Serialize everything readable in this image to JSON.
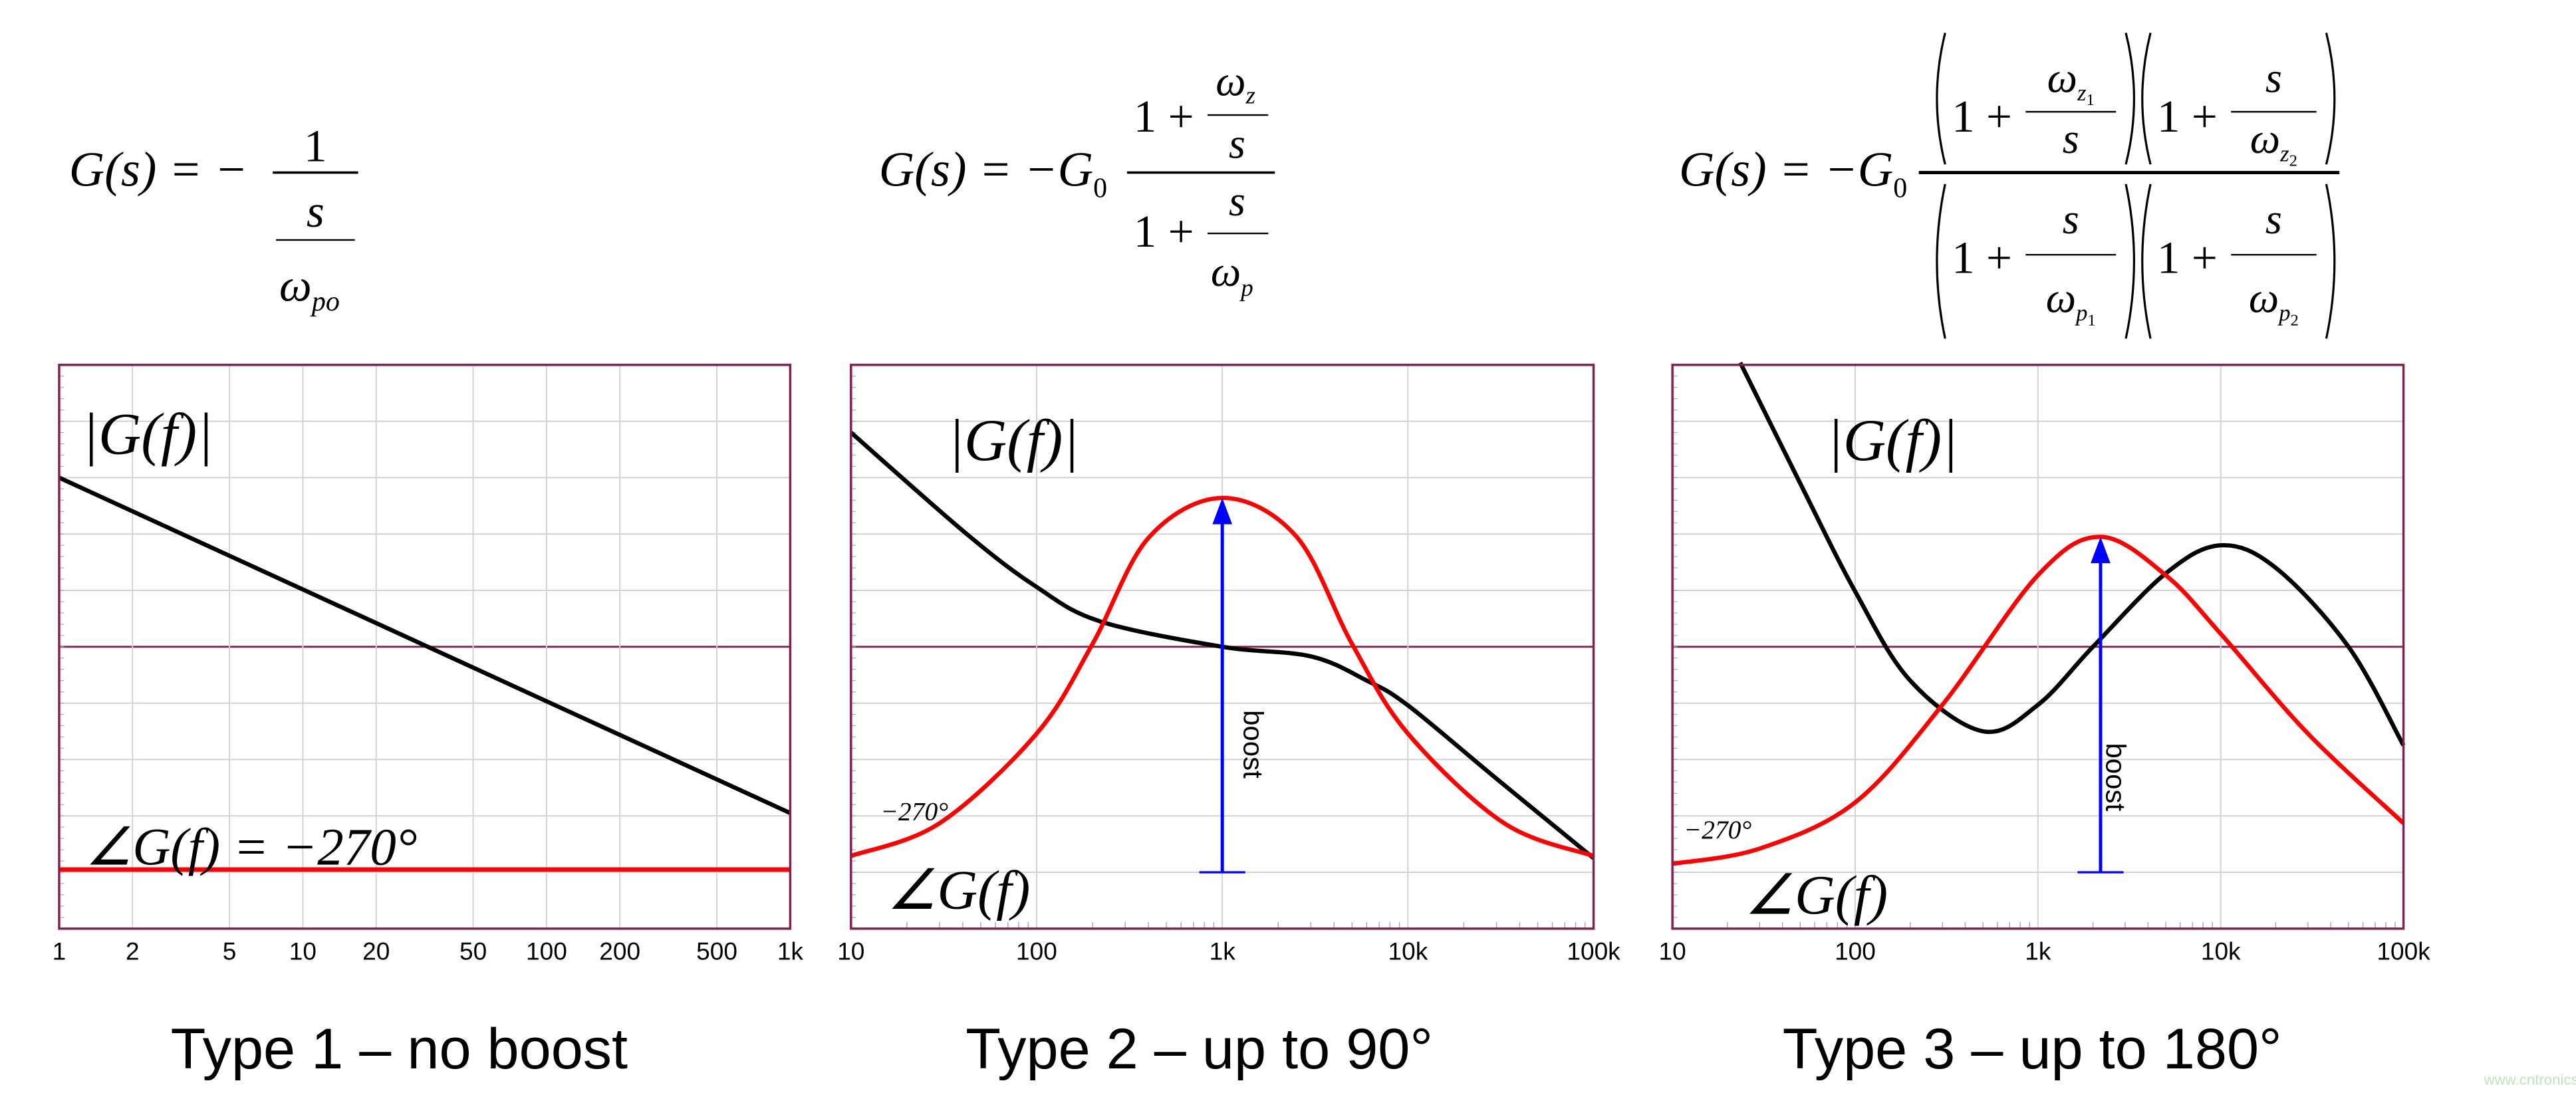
{
  "equations": {
    "type1": {
      "lhs": "G(s) = −",
      "num": "1",
      "den_num": "s",
      "den_den": "ω",
      "den_den_sub": "po"
    },
    "type2": {
      "lhs": "G(s) = −G",
      "lhs_sub": "0",
      "num_one": "1 +",
      "num_num": "ω",
      "num_num_sub": "z",
      "num_den": "s",
      "den_one": "1 +",
      "den_num": "s",
      "den_den": "ω",
      "den_den_sub": "p"
    },
    "type3": {
      "lhs": "G(s) = −G",
      "lhs_sub": "0",
      "factors": [
        {
          "one": "1 +",
          "num": "ω",
          "num_sub": "z",
          "num_subsub": "1",
          "den": "s",
          "den_sub": "",
          "den_subsub": ""
        },
        {
          "one": "1 +",
          "num": "s",
          "num_sub": "",
          "num_subsub": "",
          "den": "ω",
          "den_sub": "z",
          "den_subsub": "2"
        },
        {
          "one": "1 +",
          "num": "s",
          "num_sub": "",
          "num_subsub": "",
          "den": "ω",
          "den_sub": "p",
          "den_subsub": "1"
        },
        {
          "one": "1 +",
          "num": "s",
          "num_sub": "",
          "num_subsub": "",
          "den": "ω",
          "den_sub": "p",
          "den_subsub": "2"
        }
      ],
      "open_paren": "(",
      "close_paren": ")"
    }
  },
  "labels": {
    "magnitude": "|G(f)|",
    "phase": "∠G(f)",
    "phase_type1": "∠G(f) = −270°",
    "minus270": "−270°",
    "boost": "boost"
  },
  "titles": [
    "Type 1 – no boost",
    "Type 2 – up to 90°",
    "Type 3 – up to 180°"
  ],
  "watermark": "www.cntronics.com",
  "colors": {
    "frame": "#8a1c52",
    "grid": "#d2d2d2",
    "magnitude": "#000000",
    "phase": "#ff0000",
    "boost_arrow": "#0000ff"
  },
  "chart_data": [
    {
      "type": "line",
      "xscale": "log",
      "xlim": [
        1,
        1000
      ],
      "ylim": [
        0,
        10
      ],
      "grid": true,
      "xticks": [
        1,
        2,
        5,
        10,
        20,
        50,
        100,
        200,
        500,
        1000
      ],
      "xtick_labels": [
        "1",
        "2",
        "5",
        "10",
        "20",
        "50",
        "100",
        "200",
        "500",
        "1k"
      ],
      "series": [
        {
          "name": "|G(f)|",
          "color": "#000000",
          "x": [
            1,
            1000
          ],
          "y": [
            8.0,
            2.05
          ]
        },
        {
          "name": "∠G(f) = −270°",
          "color": "#ff0000",
          "x": [
            1,
            1000
          ],
          "y": [
            1.05,
            1.05
          ]
        }
      ]
    },
    {
      "type": "line",
      "xscale": "log",
      "xlim": [
        10,
        100000
      ],
      "ylim": [
        0,
        10
      ],
      "grid": true,
      "xticks": [
        10,
        100,
        1000,
        10000,
        100000
      ],
      "xtick_labels": [
        "10",
        "100",
        "1k",
        "10k",
        "100k"
      ],
      "series": [
        {
          "name": "|G(f)|",
          "color": "#000000",
          "x": [
            10,
            42,
            100,
            220,
            1000,
            3000,
            6000,
            10000,
            30000,
            100000
          ],
          "y": [
            8.8,
            7.0,
            6.06,
            5.45,
            5.0,
            4.83,
            4.4,
            3.96,
            2.66,
            1.25
          ]
        },
        {
          "name": "∠G(f)",
          "color": "#ff0000",
          "x": [
            10,
            30,
            100,
            200,
            400,
            1000,
            2500,
            5000,
            10000,
            33000,
            100000
          ],
          "y": [
            1.29,
            1.87,
            3.46,
            5.05,
            6.93,
            7.64,
            6.96,
            5.05,
            3.46,
            1.87,
            1.29
          ]
        }
      ],
      "boost": {
        "x": 1000,
        "from": 1.0,
        "to": 7.64
      }
    },
    {
      "type": "line",
      "xscale": "log",
      "xlim": [
        10,
        100000
      ],
      "ylim": [
        0,
        10
      ],
      "grid": true,
      "xticks": [
        10,
        100,
        1000,
        10000,
        100000
      ],
      "xtick_labels": [
        "10",
        "100",
        "1k",
        "10k",
        "100k"
      ],
      "series": [
        {
          "name": "|G(f)|",
          "color": "#000000",
          "x": [
            23.5,
            50,
            100,
            200,
            500,
            1000,
            2000,
            5000,
            10000,
            20000,
            50000,
            100000
          ],
          "y": [
            10.04,
            7.9,
            5.98,
            4.4,
            3.5,
            3.97,
            5.0,
            6.3,
            6.8,
            6.4,
            5.0,
            3.25
          ]
        },
        {
          "name": "∠G(f)",
          "color": "#ff0000",
          "x": [
            10,
            30,
            100,
            300,
            1000,
            2200,
            5000,
            10000,
            30000,
            100000
          ],
          "y": [
            1.15,
            1.42,
            2.24,
            3.97,
            6.27,
            6.95,
            6.27,
            5.23,
            3.46,
            1.87
          ]
        }
      ],
      "boost": {
        "x": 2200,
        "from": 1.0,
        "to": 6.95
      }
    }
  ]
}
